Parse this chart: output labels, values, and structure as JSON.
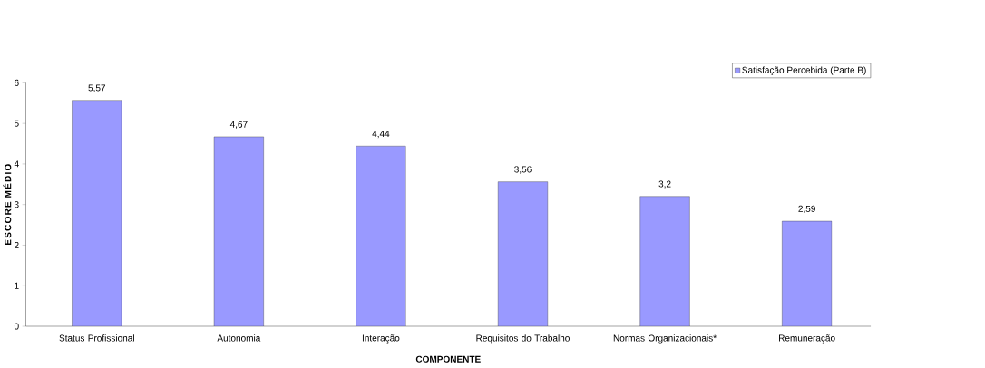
{
  "chart_data": {
    "type": "bar",
    "xlabel": "COMPONENTE",
    "ylabel": "ESCORE MÉDIO",
    "categories": [
      "Status Profissional",
      "Autonomia",
      "Interação",
      "Requisitos do Trabalho",
      "Normas Organizacionais*",
      "Remuneração"
    ],
    "series": [
      {
        "name": "Satisfação Percebida (Parte B)",
        "color": "#9999ff",
        "values": [
          5.57,
          4.67,
          4.44,
          3.56,
          3.2,
          2.59
        ],
        "value_labels": [
          "5,57",
          "4,67",
          "4,44",
          "3,56",
          "3,2",
          "2,59"
        ]
      }
    ],
    "ylim": [
      0,
      6
    ],
    "yticks": [
      0,
      1,
      2,
      3,
      4,
      5,
      6
    ],
    "grid": false,
    "legend": "top right"
  }
}
